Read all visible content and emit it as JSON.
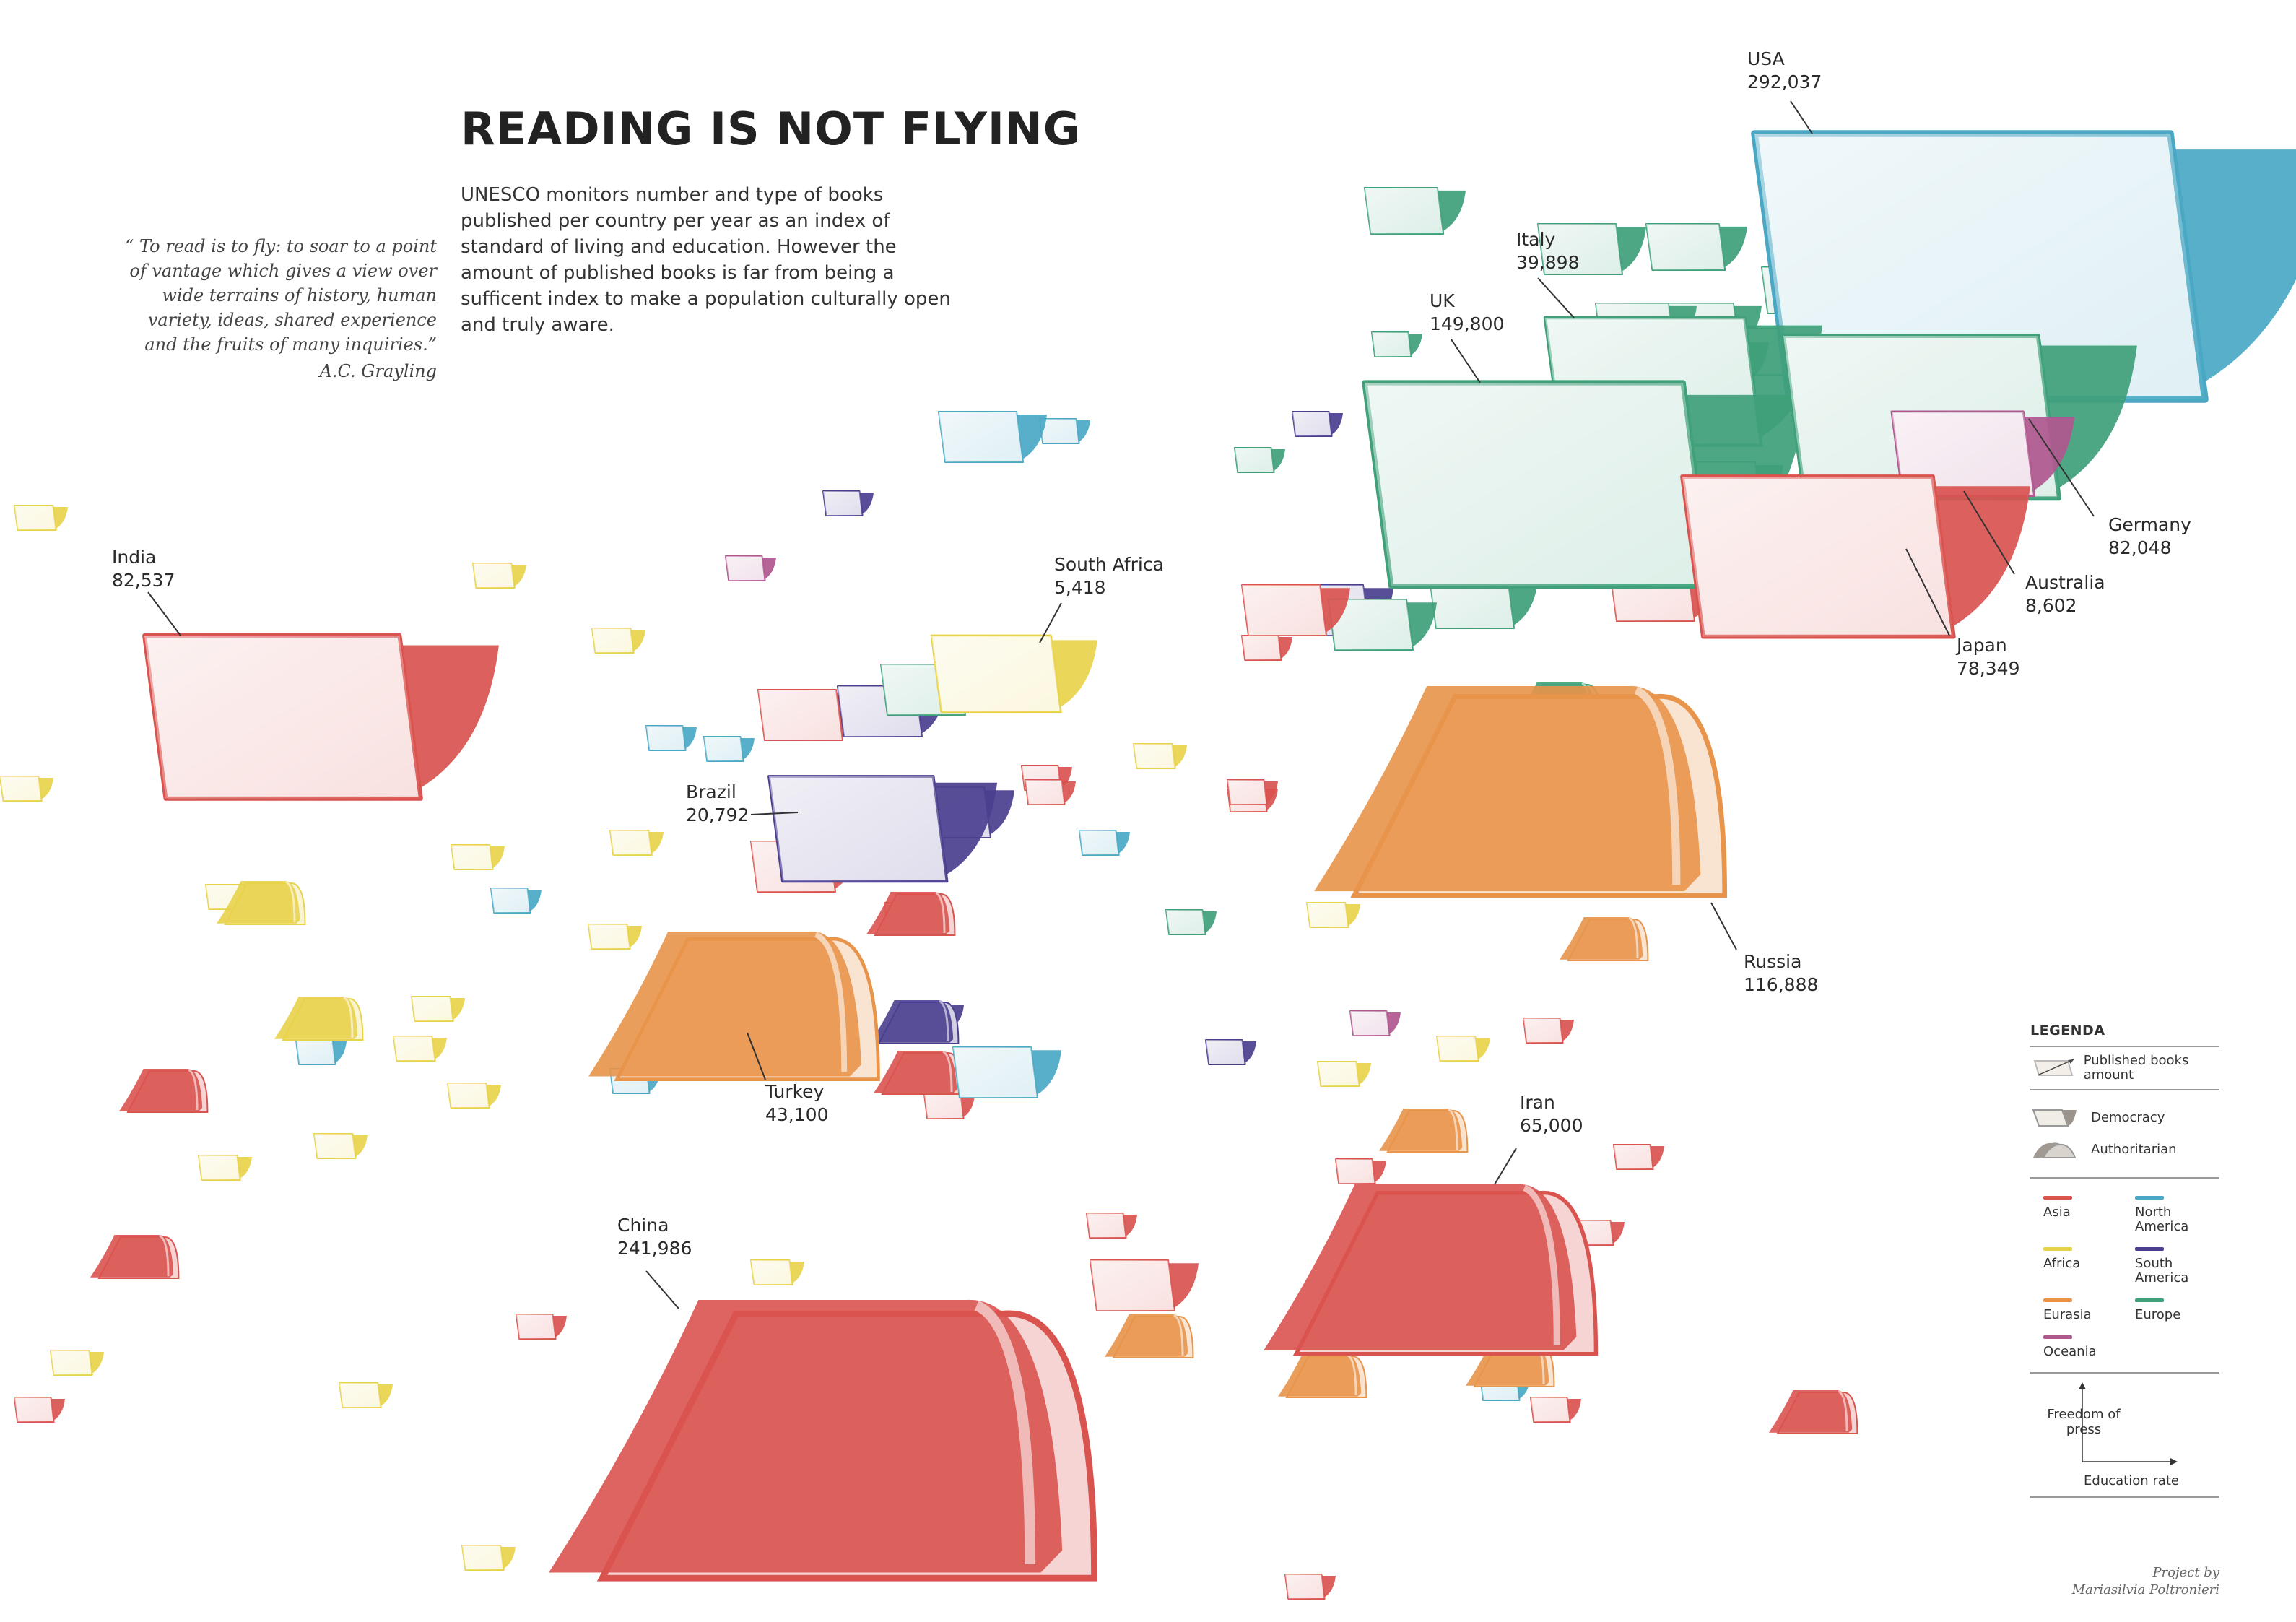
{
  "header": {
    "title": "READING IS NOT FLYING",
    "intro": "UNESCO monitors number and type of books published per country per year as an index of standard of living and education. However the amount of published books is far from being a sufficent index to make a population culturally open and truly aware.",
    "quote": "“ To read is to fly: to soar to a point of vantage which gives a view over wide terrains of history, human variety, ideas, shared experience and the fruits of many inquiries.”",
    "quote_author": "A.C. Grayling"
  },
  "colors": {
    "Asia": "#d9534f",
    "Africa": "#e8d24a",
    "Eurasia": "#e8944a",
    "Oceania": "#b0578f",
    "North America": "#4aa8c4",
    "South America": "#4a3f8f",
    "Europe": "#3fa07a"
  },
  "chart_data": {
    "type": "scatter",
    "title": "READING IS NOT FLYING",
    "x_axis_label": "Education rate",
    "y_axis_label": "Freedom of press",
    "size_label": "Published books amount",
    "labeled_points": [
      {
        "name": "USA",
        "value_label": "292,037",
        "books": 292037,
        "continent": "North America",
        "regime": "Democracy"
      },
      {
        "name": "Italy",
        "value_label": "39,898",
        "books": 39898,
        "continent": "Europe",
        "regime": "Democracy"
      },
      {
        "name": "UK",
        "value_label": "149,800",
        "books": 149800,
        "continent": "Europe",
        "regime": "Democracy"
      },
      {
        "name": "Germany",
        "value_label": "82,048",
        "books": 82048,
        "continent": "Europe",
        "regime": "Democracy"
      },
      {
        "name": "Australia",
        "value_label": "8,602",
        "books": 8602,
        "continent": "Oceania",
        "regime": "Democracy"
      },
      {
        "name": "Japan",
        "value_label": "78,349",
        "books": 78349,
        "continent": "Asia",
        "regime": "Democracy"
      },
      {
        "name": "India",
        "value_label": "82,537",
        "books": 82537,
        "continent": "Asia",
        "regime": "Democracy"
      },
      {
        "name": "South Africa",
        "value_label": "5,418",
        "books": 5418,
        "continent": "Africa",
        "regime": "Democracy"
      },
      {
        "name": "Brazil",
        "value_label": "20,792",
        "books": 20792,
        "continent": "South America",
        "regime": "Democracy"
      },
      {
        "name": "Russia",
        "value_label": "116,888",
        "books": 116888,
        "continent": "Eurasia",
        "regime": "Authoritarian"
      },
      {
        "name": "Turkey",
        "value_label": "43,100",
        "books": 43100,
        "continent": "Eurasia",
        "regime": "Authoritarian"
      },
      {
        "name": "Iran",
        "value_label": "65,000",
        "books": 65000,
        "continent": "Asia",
        "regime": "Authoritarian"
      },
      {
        "name": "China",
        "value_label": "241,986",
        "books": 241986,
        "continent": "Asia",
        "regime": "Authoritarian"
      }
    ]
  },
  "legend": {
    "title": "LEGENDA",
    "size_entry": "Published books amount",
    "regime_entries": [
      "Democracy",
      "Authoritarian"
    ],
    "continents": [
      {
        "name": "Asia",
        "color": "#d9534f"
      },
      {
        "name": "North America",
        "color": "#4aa8c4"
      },
      {
        "name": "Africa",
        "color": "#e8d24a"
      },
      {
        "name": "South America",
        "color": "#4a3f8f"
      },
      {
        "name": "Eurasia",
        "color": "#e8944a"
      },
      {
        "name": "Europe",
        "color": "#3fa07a"
      },
      {
        "name": "Oceania",
        "color": "#b0578f"
      }
    ],
    "y_axis": "Freedom of press",
    "x_axis": "Education rate"
  },
  "credit": {
    "line1": "Project by",
    "line2": "Mariasilvia Poltronieri"
  }
}
